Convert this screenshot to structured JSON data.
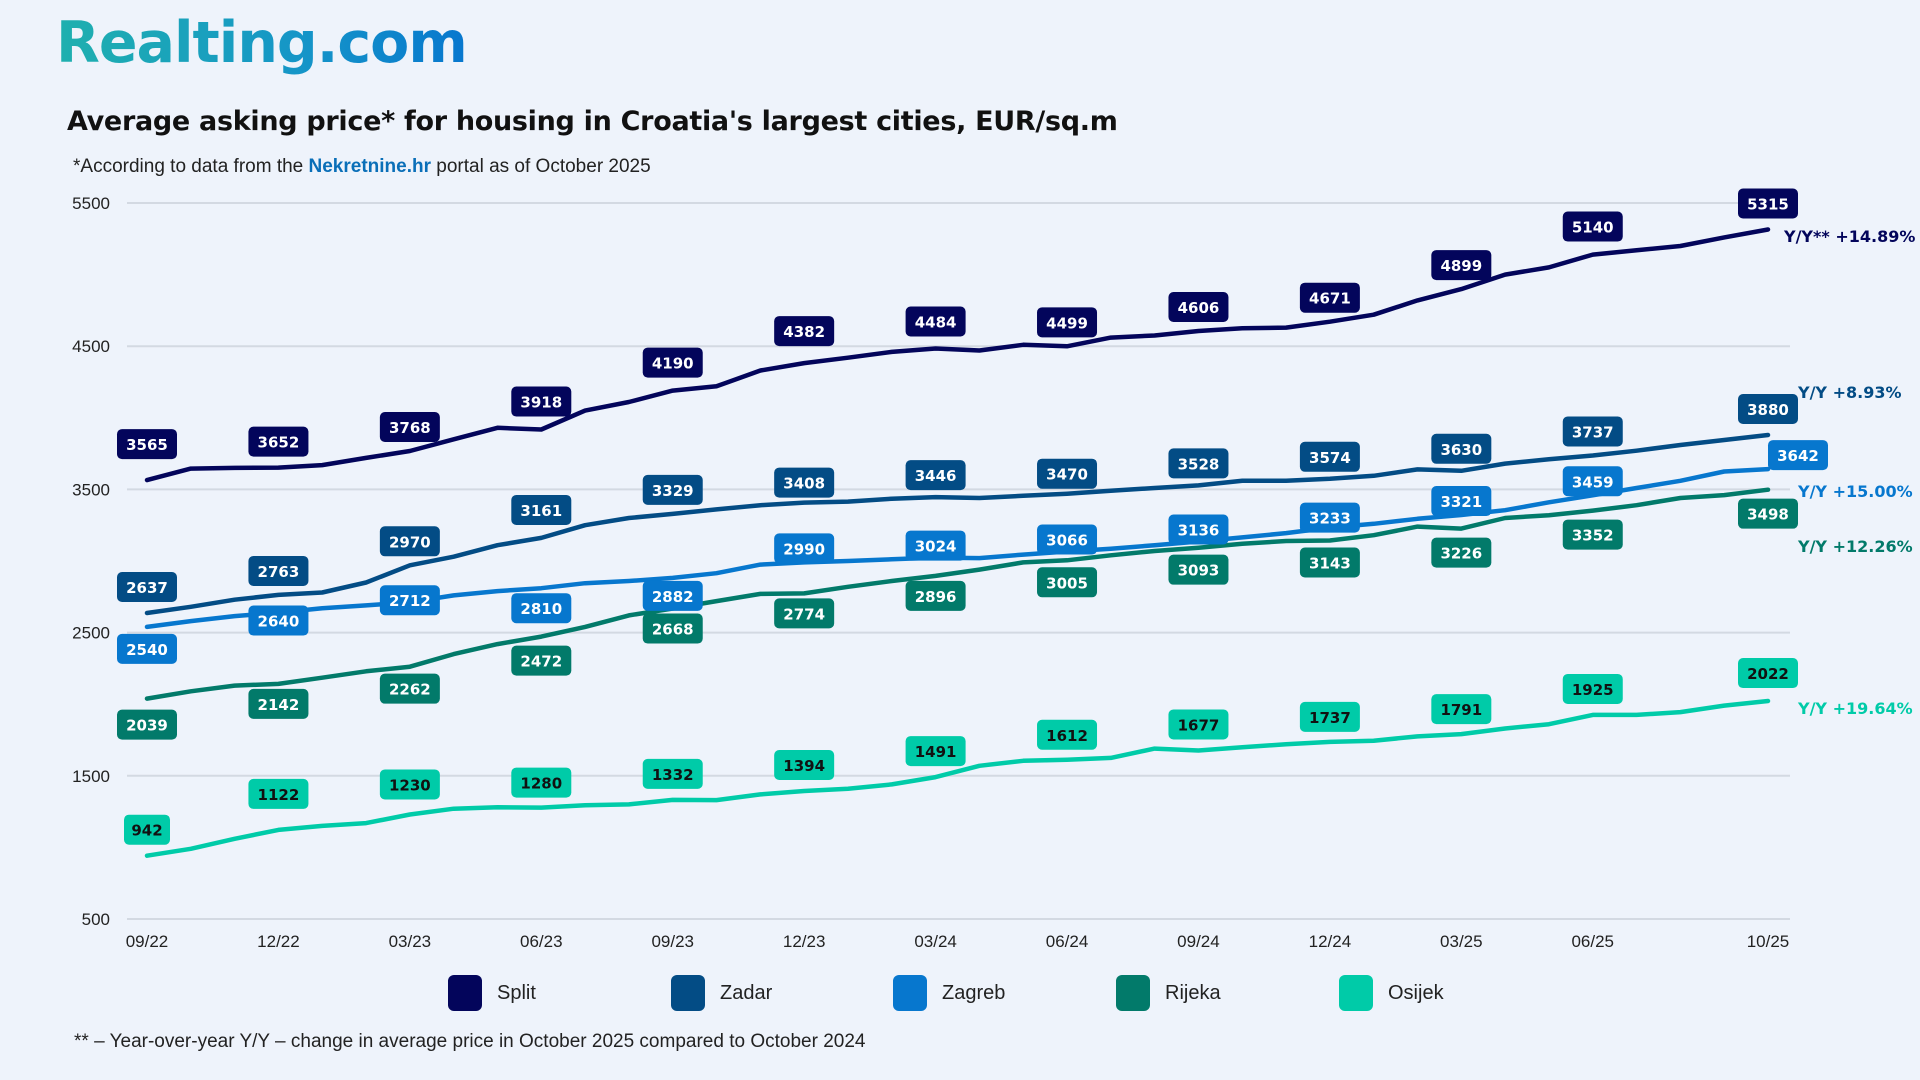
{
  "brand": {
    "logo_text": "Realting.com"
  },
  "header": {
    "title": "Average asking price* for housing in Croatia's largest cities, EUR/sq.m",
    "subtitle_prefix": "*According to data from the ",
    "subtitle_source": "Nekretnine.hr",
    "subtitle_suffix": " portal as of October 2025"
  },
  "footnote": "** – Year-over-year Y/Y – change in average price in October 2025 compared to October 2024",
  "chart_data": {
    "type": "line",
    "title": "Average asking price* for housing in Croatia's largest cities, EUR/sq.m",
    "xlabel": "",
    "ylabel": "EUR/sq.m",
    "ylim": [
      500,
      5500
    ],
    "yticks": [
      500,
      1500,
      2500,
      3500,
      4500,
      5500
    ],
    "grid": true,
    "legend_position": "bottom",
    "x_tick_labels": [
      "09/22",
      "12/22",
      "03/23",
      "06/23",
      "09/23",
      "12/23",
      "03/24",
      "06/24",
      "09/24",
      "12/24",
      "03/25",
      "06/25",
      "10/25"
    ],
    "x_tick_index": [
      0,
      3,
      6,
      9,
      12,
      15,
      18,
      21,
      24,
      27,
      30,
      33,
      37
    ],
    "labeled_index": [
      0,
      3,
      6,
      9,
      12,
      15,
      18,
      21,
      24,
      27,
      30,
      33,
      37
    ],
    "series": [
      {
        "name": "Split",
        "color": "#03055B",
        "label_text_color": "#FFFFFF",
        "yoy_label": "Y/Y** +14.89%",
        "labeled_values": [
          3565,
          3652,
          3768,
          3918,
          4190,
          4382,
          4484,
          4499,
          4606,
          4671,
          4899,
          5140,
          5315
        ],
        "values": [
          3565,
          3645,
          3650,
          3652,
          3670,
          3720,
          3768,
          3850,
          3930,
          3918,
          4050,
          4110,
          4190,
          4220,
          4330,
          4382,
          4420,
          4460,
          4484,
          4470,
          4510,
          4499,
          4560,
          4575,
          4606,
          4625,
          4630,
          4671,
          4720,
          4820,
          4899,
          5000,
          5050,
          5140,
          5170,
          5200,
          5260,
          5315
        ]
      },
      {
        "name": "Zadar",
        "color": "#034C85",
        "label_text_color": "#FFFFFF",
        "yoy_label": "Y/Y +8.93%",
        "labeled_values": [
          2637,
          2763,
          2970,
          3161,
          3329,
          3408,
          3446,
          3470,
          3528,
          3574,
          3630,
          3737,
          3880
        ],
        "values": [
          2637,
          2680,
          2730,
          2763,
          2780,
          2850,
          2970,
          3030,
          3110,
          3161,
          3250,
          3300,
          3329,
          3360,
          3390,
          3408,
          3415,
          3435,
          3446,
          3440,
          3455,
          3470,
          3490,
          3510,
          3528,
          3560,
          3560,
          3574,
          3595,
          3640,
          3630,
          3680,
          3710,
          3737,
          3770,
          3810,
          3845,
          3880
        ]
      },
      {
        "name": "Zagreb",
        "color": "#0777CE",
        "label_text_color": "#FFFFFF",
        "yoy_label": "Y/Y +15.00%",
        "labeled_values": [
          2540,
          2640,
          2712,
          2810,
          2882,
          2990,
          3024,
          3066,
          3136,
          3233,
          3321,
          3459,
          3642
        ],
        "values": [
          2540,
          2580,
          2615,
          2640,
          2670,
          2690,
          2712,
          2760,
          2790,
          2810,
          2845,
          2860,
          2882,
          2915,
          2975,
          2990,
          3000,
          3012,
          3024,
          3020,
          3045,
          3066,
          3085,
          3110,
          3136,
          3165,
          3195,
          3233,
          3260,
          3295,
          3321,
          3355,
          3410,
          3459,
          3510,
          3560,
          3625,
          3642
        ]
      },
      {
        "name": "Rijeka",
        "color": "#027A6A",
        "label_text_color": "#FFFFFF",
        "yoy_label": "Y/Y +12.26%",
        "labeled_values": [
          2039,
          2142,
          2262,
          2472,
          2668,
          2774,
          2896,
          3005,
          3093,
          3143,
          3226,
          3352,
          3498
        ],
        "values": [
          2039,
          2090,
          2130,
          2142,
          2185,
          2230,
          2262,
          2350,
          2420,
          2472,
          2540,
          2620,
          2668,
          2720,
          2770,
          2774,
          2820,
          2860,
          2896,
          2940,
          2990,
          3005,
          3040,
          3070,
          3093,
          3120,
          3140,
          3143,
          3180,
          3240,
          3226,
          3300,
          3320,
          3352,
          3390,
          3440,
          3460,
          3498
        ]
      },
      {
        "name": "Osijek",
        "color": "#00CBA8",
        "label_text_color": "#111111",
        "yoy_label": "Y/Y +19.64%",
        "labeled_values": [
          942,
          1122,
          1230,
          1280,
          1332,
          1394,
          1491,
          1612,
          1677,
          1737,
          1791,
          1925,
          2022
        ],
        "values": [
          942,
          990,
          1060,
          1122,
          1150,
          1170,
          1230,
          1270,
          1280,
          1278,
          1295,
          1300,
          1332,
          1330,
          1370,
          1394,
          1410,
          1440,
          1491,
          1570,
          1605,
          1612,
          1625,
          1690,
          1677,
          1700,
          1720,
          1737,
          1745,
          1775,
          1791,
          1830,
          1860,
          1925,
          1925,
          1945,
          1990,
          2022
        ]
      }
    ]
  },
  "legend": [
    {
      "name": "Split",
      "color": "#03055B"
    },
    {
      "name": "Zadar",
      "color": "#034C85"
    },
    {
      "name": "Zagreb",
      "color": "#0777CE"
    },
    {
      "name": "Rijeka",
      "color": "#027A6A"
    },
    {
      "name": "Osijek",
      "color": "#00CBA8"
    }
  ]
}
